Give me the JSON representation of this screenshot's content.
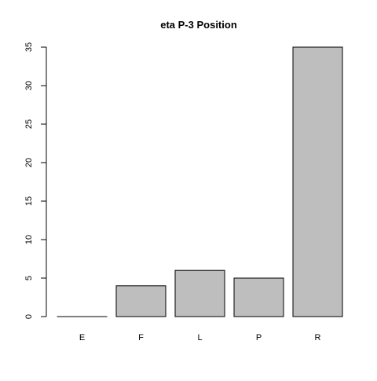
{
  "chart_data": {
    "type": "bar",
    "title": "eta P-3 Position",
    "xlabel": "",
    "ylabel": "",
    "categories": [
      "E",
      "F",
      "L",
      "P",
      "R"
    ],
    "values": [
      0,
      4,
      6,
      5,
      35
    ],
    "ylim": [
      0,
      35
    ],
    "yticks": [
      "0",
      "5",
      "10",
      "15",
      "20",
      "25",
      "30",
      "35"
    ],
    "grid": false,
    "legend": "none",
    "bar_fill": "#bebebe",
    "bar_stroke": "#000000"
  }
}
